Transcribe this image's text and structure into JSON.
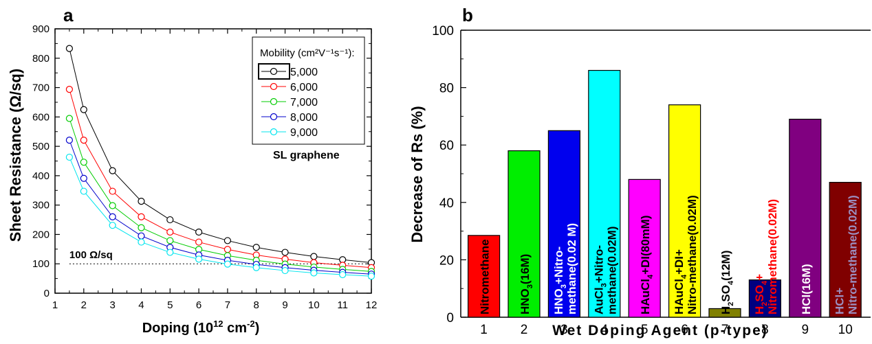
{
  "chart_data": [
    {
      "type": "line",
      "panel_label": "a",
      "xlabel_text": "Doping (10",
      "xlabel_sup": "12",
      "xlabel_text2": " cm",
      "xlabel_sup2": "-2",
      "xlabel_end": ")",
      "ylabel": "Sheet Resistance (Ω/sq)",
      "xlim": [
        1,
        12
      ],
      "ylim": [
        0,
        900
      ],
      "x_ticks": [
        "1",
        "2",
        "3",
        "4",
        "5",
        "6",
        "7",
        "8",
        "9",
        "10",
        "11",
        "12"
      ],
      "y_ticks": [
        "0",
        "100",
        "200",
        "300",
        "400",
        "500",
        "600",
        "700",
        "800",
        "900"
      ],
      "x": [
        1.5,
        2,
        3,
        4,
        5,
        6,
        7,
        8,
        9,
        10,
        11,
        12
      ],
      "legend_title": "Mobility (cm²V⁻¹s⁻¹):",
      "legend_placement": "top-right",
      "series": [
        {
          "name": "5,000",
          "color": "#000000",
          "values": [
            833,
            625,
            417,
            313,
            250,
            208,
            179,
            156,
            139,
            125,
            114,
            104
          ]
        },
        {
          "name": "6,000",
          "color": "#ff0000",
          "values": [
            694,
            521,
            347,
            260,
            208,
            174,
            149,
            130,
            116,
            104,
            95,
            87
          ]
        },
        {
          "name": "7,000",
          "color": "#00cc00",
          "values": [
            595,
            446,
            298,
            223,
            179,
            149,
            128,
            112,
            99,
            89,
            81,
            74
          ]
        },
        {
          "name": "8,000",
          "color": "#0000cc",
          "values": [
            521,
            391,
            260,
            195,
            156,
            130,
            112,
            98,
            87,
            78,
            71,
            65
          ]
        },
        {
          "name": "9,000",
          "color": "#00e5ee",
          "values": [
            463,
            347,
            231,
            174,
            139,
            116,
            99,
            87,
            77,
            69,
            63,
            58
          ]
        }
      ],
      "reference_line": {
        "y": 100,
        "label": "100 Ω/sq"
      },
      "annotation": "SL graphene"
    },
    {
      "type": "bar",
      "panel_label": "b",
      "xlabel": "Wet Doping Agent (p-type)",
      "ylabel": "Decrease of Rs (%)",
      "ylim": [
        0,
        100
      ],
      "y_ticks": [
        "0",
        "20",
        "40",
        "60",
        "80",
        "100"
      ],
      "categories": [
        "1",
        "2",
        "3",
        "4",
        "5",
        "6",
        "7",
        "8",
        "9",
        "10"
      ],
      "values": [
        28.5,
        58,
        65,
        86,
        48,
        74,
        3,
        13,
        69,
        47
      ],
      "colors": [
        "#ff0000",
        "#00ee00",
        "#0000ee",
        "#00ffff",
        "#ff00ff",
        "#ffff00",
        "#808000",
        "#000080",
        "#800080",
        "#800000"
      ],
      "bar_labels": [
        {
          "lines": [
            {
              "parts": [
                [
                  "Nitromethane",
                  ""
                ]
              ]
            }
          ],
          "color": "#000000"
        },
        {
          "lines": [
            {
              "parts": [
                [
                  "HNO",
                  ""
                ],
                [
                  "3",
                  "sub"
                ],
                [
                  "(16M)",
                  ""
                ]
              ]
            }
          ],
          "color": "#000000"
        },
        {
          "lines": [
            {
              "parts": [
                [
                  "HNO",
                  ""
                ],
                [
                  "3",
                  "sub"
                ],
                [
                  "+Nitro-",
                  ""
                ]
              ]
            },
            {
              "parts": [
                [
                  "methane(0.02 M)",
                  ""
                ]
              ]
            }
          ],
          "color": "#ffffff"
        },
        {
          "lines": [
            {
              "parts": [
                [
                  "AuCl",
                  ""
                ],
                [
                  "3",
                  "sub"
                ],
                [
                  "+Nitro-",
                  ""
                ]
              ]
            },
            {
              "parts": [
                [
                  "methane(0.02M)",
                  ""
                ]
              ]
            }
          ],
          "color": "#000000"
        },
        {
          "lines": [
            {
              "parts": [
                [
                  "HAuCl",
                  ""
                ],
                [
                  "4",
                  "sub"
                ],
                [
                  "+DI(80mM)",
                  ""
                ]
              ]
            }
          ],
          "color": "#000000"
        },
        {
          "lines": [
            {
              "parts": [
                [
                  "HAuCl",
                  ""
                ],
                [
                  "4",
                  "sub"
                ],
                [
                  "+DI+",
                  ""
                ]
              ]
            },
            {
              "parts": [
                [
                  "Nitro-methane(0.02M)",
                  ""
                ]
              ]
            }
          ],
          "color": "#000000"
        },
        {
          "lines": [
            {
              "parts": [
                [
                  "H",
                  ""
                ],
                [
                  "2",
                  "sub"
                ],
                [
                  "SO",
                  ""
                ],
                [
                  "4",
                  "sub"
                ],
                [
                  "(12M)",
                  ""
                ]
              ]
            }
          ],
          "color": "#000000"
        },
        {
          "lines": [
            {
              "parts": [
                [
                  "H",
                  ""
                ],
                [
                  "2",
                  "sub"
                ],
                [
                  "SO",
                  ""
                ],
                [
                  "4",
                  "sub"
                ],
                [
                  "+",
                  ""
                ]
              ]
            },
            {
              "parts": [
                [
                  "Nitromethane(0.02M)",
                  ""
                ]
              ]
            }
          ],
          "color": "#ff0000"
        },
        {
          "lines": [
            {
              "parts": [
                [
                  "HCl(16M)",
                  ""
                ]
              ]
            }
          ],
          "color": "#ffffff"
        },
        {
          "lines": [
            {
              "parts": [
                [
                  "HCl+",
                  ""
                ]
              ]
            },
            {
              "parts": [
                [
                  "Nitro-methane(0.02M)",
                  ""
                ]
              ]
            }
          ],
          "color": "#9c8fc0"
        }
      ]
    }
  ]
}
